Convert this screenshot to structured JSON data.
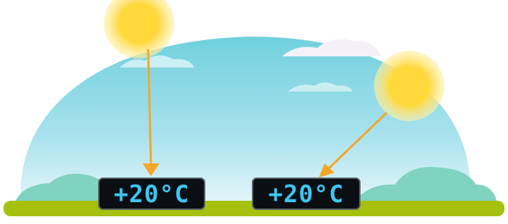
{
  "displays": [
    {
      "label": "+20°C"
    },
    {
      "label": "+20°C"
    }
  ]
}
